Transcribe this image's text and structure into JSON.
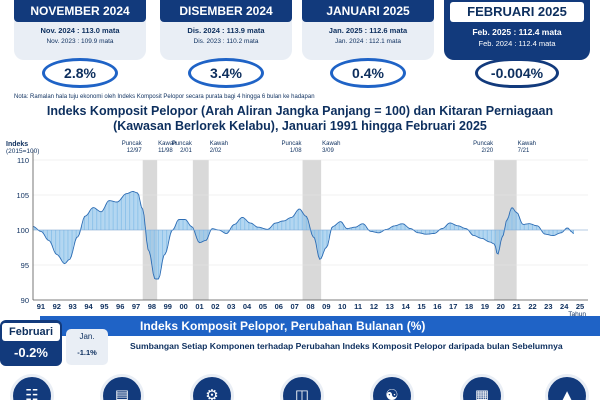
{
  "cards": [
    {
      "month": "NOVEMBER 2024",
      "current": "Nov. 2024 : 113.0 mata",
      "previous": "Nov. 2023 : 109.9 mata",
      "change": "2.8%"
    },
    {
      "month": "DISEMBER 2024",
      "current": "Dis. 2024 : 113.9 mata",
      "previous": "Dis. 2023 : 110.2 mata",
      "change": "3.4%"
    },
    {
      "month": "JANUARI 2025",
      "current": "Jan. 2025 : 112.6 mata",
      "previous": "Jan. 2024 : 112.1 mata",
      "change": "0.4%"
    },
    {
      "month": "FEBRUARI 2025",
      "current": "Feb. 2025 : 112.4 mata",
      "previous": "Feb. 2024 : 112.4 mata",
      "change": "-0.004%"
    }
  ],
  "note": "Nota: Ramalan hala tuju ekonomi oleh Indeks Komposit Pelopor secara purata bagi 4 hingga 6 bulan ke hadapan",
  "chart_data": {
    "type": "bar",
    "title_line1": "Indeks Komposit Pelopor (Arah Aliran Jangka Panjang = 100) dan Kitaran Perniagaan",
    "title_line2": "(Kawasan Berlorek Kelabu), Januari 1991 hingga Februari 2025",
    "ylabel": "Indeks",
    "ylabel2": "(2015=100)",
    "xlabel": "Tahun",
    "baseline": 100,
    "ylim": [
      90,
      110
    ],
    "yticks": [
      90,
      95,
      100,
      105,
      110
    ],
    "xticks": [
      "91",
      "92",
      "93",
      "94",
      "95",
      "96",
      "97",
      "98",
      "99",
      "00",
      "01",
      "02",
      "03",
      "04",
      "05",
      "06",
      "07",
      "08",
      "09",
      "10",
      "11",
      "12",
      "13",
      "14",
      "15",
      "16",
      "17",
      "18",
      "19",
      "20",
      "21",
      "22",
      "23",
      "24",
      "25"
    ],
    "x_start": 1991,
    "anchors": [
      [
        1991.0,
        100.5
      ],
      [
        1991.5,
        99.8
      ],
      [
        1992.0,
        98.5
      ],
      [
        1992.5,
        96.5
      ],
      [
        1993.0,
        95.2
      ],
      [
        1993.3,
        95.8
      ],
      [
        1993.8,
        99.0
      ],
      [
        1994.3,
        102.0
      ],
      [
        1994.8,
        103.2
      ],
      [
        1995.3,
        102.6
      ],
      [
        1995.8,
        104.2
      ],
      [
        1996.3,
        104.0
      ],
      [
        1996.9,
        105.2
      ],
      [
        1997.3,
        105.5
      ],
      [
        1997.6,
        105.3
      ],
      [
        1997.9,
        103.0
      ],
      [
        1998.3,
        97.0
      ],
      [
        1998.7,
        93.0
      ],
      [
        1998.9,
        93.0
      ],
      [
        1999.3,
        96.5
      ],
      [
        1999.8,
        100.0
      ],
      [
        2000.2,
        101.5
      ],
      [
        2000.6,
        101.5
      ],
      [
        2001.0,
        100.5
      ],
      [
        2001.5,
        98.2
      ],
      [
        2001.9,
        98.5
      ],
      [
        2002.3,
        100.2
      ],
      [
        2002.7,
        100.0
      ],
      [
        2003.2,
        99.5
      ],
      [
        2003.7,
        100.8
      ],
      [
        2004.2,
        101.8
      ],
      [
        2004.7,
        101.0
      ],
      [
        2005.2,
        100.4
      ],
      [
        2005.8,
        100.1
      ],
      [
        2006.3,
        101.0
      ],
      [
        2006.8,
        101.3
      ],
      [
        2007.3,
        101.8
      ],
      [
        2007.8,
        103.0
      ],
      [
        2008.2,
        102.0
      ],
      [
        2008.7,
        99.0
      ],
      [
        2009.1,
        95.8
      ],
      [
        2009.5,
        97.5
      ],
      [
        2009.9,
        100.5
      ],
      [
        2010.4,
        101.2
      ],
      [
        2010.8,
        100.2
      ],
      [
        2011.3,
        100.4
      ],
      [
        2011.8,
        100.9
      ],
      [
        2012.3,
        99.8
      ],
      [
        2012.8,
        99.6
      ],
      [
        2013.3,
        100.1
      ],
      [
        2013.8,
        100.6
      ],
      [
        2014.3,
        100.9
      ],
      [
        2014.8,
        100.2
      ],
      [
        2015.3,
        99.6
      ],
      [
        2015.8,
        99.4
      ],
      [
        2016.3,
        99.5
      ],
      [
        2016.8,
        100.2
      ],
      [
        2017.3,
        101.0
      ],
      [
        2017.8,
        100.6
      ],
      [
        2018.3,
        100.2
      ],
      [
        2018.8,
        99.2
      ],
      [
        2019.3,
        98.8
      ],
      [
        2019.8,
        98.3
      ],
      [
        2020.1,
        98.0
      ],
      [
        2020.3,
        96.5
      ],
      [
        2020.6,
        99.0
      ],
      [
        2020.9,
        101.5
      ],
      [
        2021.2,
        103.2
      ],
      [
        2021.5,
        102.5
      ],
      [
        2021.9,
        100.8
      ],
      [
        2022.3,
        100.9
      ],
      [
        2022.8,
        100.6
      ],
      [
        2023.3,
        99.4
      ],
      [
        2023.8,
        99.2
      ],
      [
        2024.3,
        99.6
      ],
      [
        2024.7,
        100.3
      ],
      [
        2025.0,
        99.7
      ],
      [
        2025.15,
        99.3
      ]
    ],
    "peaks": [
      {
        "label": "Puncak",
        "date": "12/97",
        "x": 1997.92
      },
      {
        "label": "Puncak",
        "date": "2/01",
        "x": 2001.08
      },
      {
        "label": "Puncak",
        "date": "1/08",
        "x": 2008.0
      },
      {
        "label": "Puncak",
        "date": "2/20",
        "x": 2020.08
      }
    ],
    "troughs": [
      {
        "label": "Kawah",
        "date": "11/98",
        "x": 1998.83
      },
      {
        "label": "Kawah",
        "date": "2/02",
        "x": 2002.08
      },
      {
        "label": "Kawah",
        "date": "3/09",
        "x": 2009.17
      },
      {
        "label": "Kawah",
        "date": "7/21",
        "x": 2021.5
      }
    ],
    "colors": {
      "bars": "#8fc3ea",
      "bar_top": "#3a7cc5",
      "line": "#2e6db4",
      "recession": "#d9d9d9"
    }
  },
  "bottom": {
    "banner_title": "Indeks Komposit Pelopor, Perubahan Bulanan (%)",
    "current_month": "Februari",
    "current_value": "-0.2%",
    "prev_month": "Jan.",
    "prev_value": "-1.1%",
    "subtitle": "Sumbangan Setiap Komponen terhadap Perubahan Indeks Komposit Pelopor daripada bulan Sebelumnya",
    "icons": [
      "cart-icon",
      "chart-money-icon",
      "cargo-icon",
      "banknote-icon",
      "handshake-icon",
      "building-icon",
      "factory-icon"
    ]
  },
  "theme": {
    "navy": "#123a7c",
    "blue": "#1f63c6",
    "light": "#e9eef5"
  }
}
